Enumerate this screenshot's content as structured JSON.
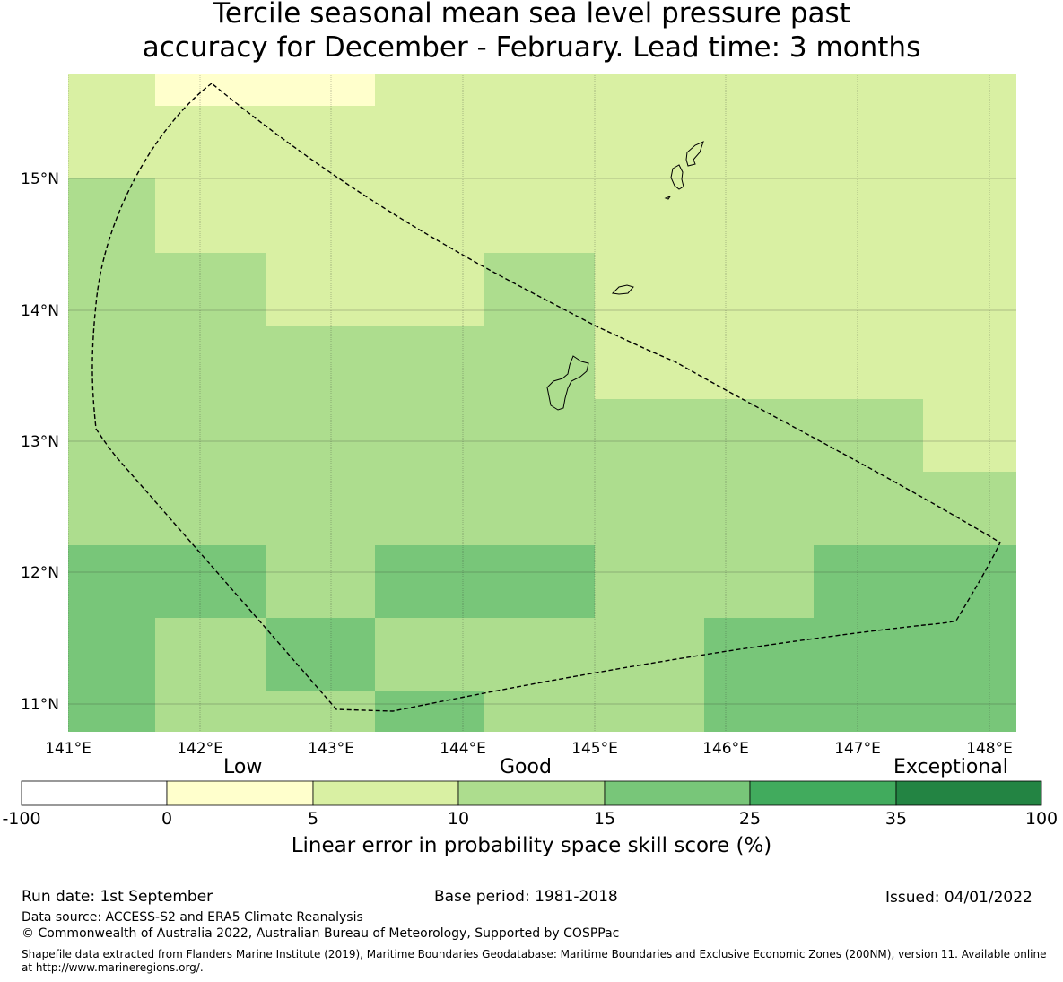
{
  "title": {
    "line1": "Tercile seasonal mean sea level pressure past",
    "line2": "accuracy for December - February. Lead time: 3 months"
  },
  "map": {
    "lon_ticks": [
      "141°E",
      "142°E",
      "143°E",
      "144°E",
      "145°E",
      "146°E",
      "147°E",
      "148°E"
    ],
    "lat_ticks": [
      "15°N",
      "14°N",
      "13°N",
      "12°N",
      "11°N"
    ],
    "grid_color": "#2b2b2b",
    "features": [
      "skill-score-grid",
      "eez-boundary-dashed",
      "mariana-islands-coastline"
    ],
    "skill_grid_category_rows_top_to_bottom": [
      [
        "5-10",
        "0-5",
        "0-5",
        "5-10",
        "5-10",
        "5-10",
        "5-10",
        "5-10",
        "5-10"
      ],
      [
        "10-15",
        "5-10",
        "5-10",
        "5-10",
        "5-10",
        "5-10",
        "5-10",
        "5-10",
        "5-10"
      ],
      [
        "10-15",
        "10-15",
        "5-10",
        "5-10",
        "10-15",
        "5-10",
        "5-10",
        "5-10",
        "5-10"
      ],
      [
        "10-15",
        "10-15",
        "10-15",
        "10-15",
        "10-15",
        "5-10",
        "5-10",
        "5-10",
        "5-10"
      ],
      [
        "10-15",
        "10-15",
        "10-15",
        "10-15",
        "10-15",
        "10-15",
        "10-15",
        "10-15",
        "5-10"
      ],
      [
        "10-15",
        "10-15",
        "10-15",
        "10-15",
        "10-15",
        "10-15",
        "10-15",
        "10-15",
        "10-15"
      ],
      [
        "15-25",
        "15-25",
        "10-15",
        "15-25",
        "15-25",
        "10-15",
        "10-15",
        "15-25",
        "15-25"
      ],
      [
        "15-25",
        "10-15",
        "15-25",
        "10-15",
        "10-15",
        "10-15",
        "15-25",
        "15-25",
        "15-25"
      ],
      [
        "15-25",
        "10-15",
        "10-15",
        "15-25",
        "10-15",
        "10-15",
        "15-25",
        "15-25",
        "15-25"
      ]
    ]
  },
  "colorbar": {
    "category_labels": [
      "Low",
      "Good",
      "Exceptional"
    ],
    "ticks": [
      "-100",
      "0",
      "5",
      "10",
      "15",
      "25",
      "35",
      "100"
    ],
    "colors": [
      "#ffffff",
      "#ffffcc",
      "#d9f0a3",
      "#addd8e",
      "#78c679",
      "#41ab5d",
      "#238443"
    ],
    "title": "Linear error in probability space skill score (%)"
  },
  "footer": {
    "run_date": "Run date: 1st September",
    "base_period": "Base period: 1981-2018",
    "issued": "Issued: 04/01/2022",
    "data_source": "Data source: ACCESS-S2 and ERA5 Climate Reanalysis",
    "copyright": "© Commonwealth of Australia 2022, Australian Bureau of Meteorology, Supported by COSPPac",
    "shapefile_note": "Shapefile data extracted from Flanders Marine Institute (2019), Maritime Boundaries Geodatabase: Maritime Boundaries and Exclusive Economic Zones (200NM), version 11. Available online at http://www.marineregions.org/."
  }
}
